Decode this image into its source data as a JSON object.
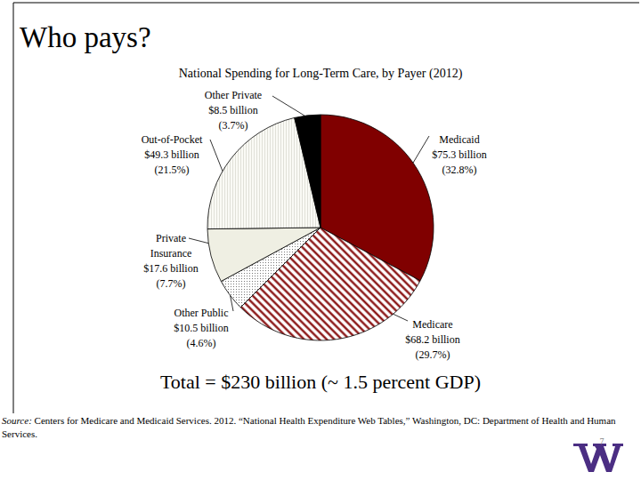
{
  "heading": "Who pays?",
  "chart_data": {
    "type": "pie",
    "title": "National Spending for Long-Term Care, by Payer (2012)",
    "categories": [
      "Medicaid",
      "Medicare",
      "Other Public",
      "Private Insurance",
      "Out-of-Pocket",
      "Other Private"
    ],
    "values": [
      32.8,
      29.7,
      4.6,
      7.7,
      21.5,
      3.7
    ],
    "value_labels": [
      "(32.8%)",
      "(29.7%)",
      "(4.6%)",
      "(7.7%)",
      "(21.5%)",
      "(3.7%)"
    ],
    "amounts": [
      75.3,
      68.2,
      10.5,
      17.6,
      49.3,
      8.5
    ],
    "amount_labels": [
      "$75.3 billion",
      "$68.2 billion",
      "$10.5 billion",
      "$17.6 billion",
      "$49.3 billion",
      "$8.5 billion"
    ],
    "colors": [
      "#800000",
      "#800000",
      "#777777",
      "#efefe3",
      "#cfcfc4",
      "#000000"
    ],
    "data_labels": true,
    "annotation": "Total = $230 billion (~ 1.5 percent GDP)"
  },
  "source": {
    "label": "Source:",
    "text": "Centers for Medicare and Medicaid Services. 2012. “National Health Expenditure Web Tables,” Washington, DC: Department of Health and Human Services."
  },
  "page_number": 7
}
